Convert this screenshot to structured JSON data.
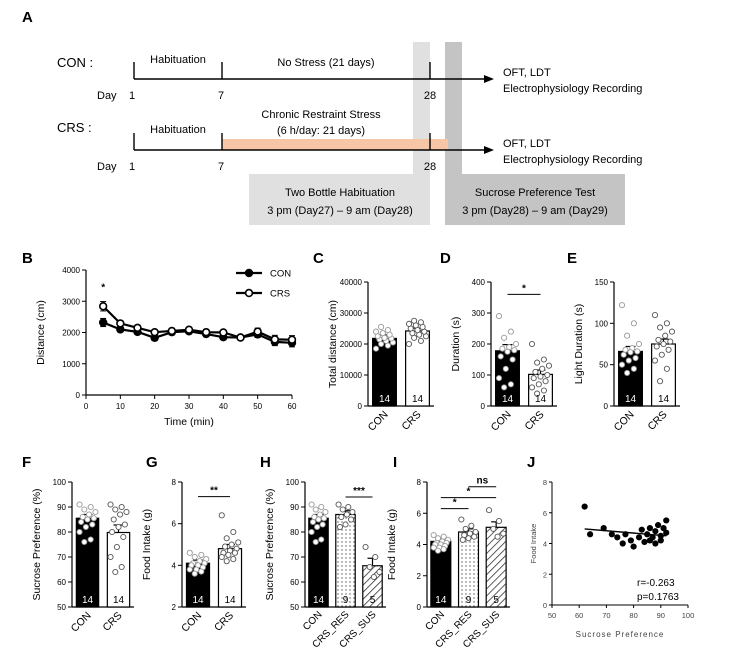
{
  "panel_a": {
    "label": "A",
    "con_label": "CON :",
    "crs_label": "CRS :",
    "day_label": "Day",
    "d1": "1",
    "d7": "7",
    "d28": "28",
    "habituation": "Habituation",
    "no_stress": "No Stress (21 days)",
    "crs_line1": "Chronic Restraint Stress",
    "crs_line2": "(6 h/day: 21 days)",
    "out1": "OFT, LDT",
    "out2": "Electrophysiology Recording",
    "tbh_line1": "Two Bottle Habituation",
    "tbh_line2": "3 pm (Day27) – 9 am (Day28)",
    "spt_line1": "Sucrose Preference Test",
    "spt_line2": "3 pm (Day28) – 9 am (Day29)",
    "colors": {
      "stress": "#f6c6a6",
      "gray_light": "#e0e0e0",
      "gray_dark": "#c4c4c4"
    }
  },
  "chart_data": [
    {
      "id": "B",
      "type": "line",
      "ylabel": "Distance (cm)",
      "xlabel": "Time (min)",
      "ylim": [
        0,
        4000
      ],
      "yticks": [
        0,
        1000,
        2000,
        3000,
        4000
      ],
      "xlim": [
        0,
        60
      ],
      "xticks": [
        0,
        10,
        20,
        30,
        40,
        50,
        60
      ],
      "x": [
        5,
        10,
        15,
        20,
        25,
        30,
        35,
        40,
        45,
        50,
        55,
        60
      ],
      "series": [
        {
          "name": "CON",
          "marker": "filled",
          "values": [
            2320,
            2100,
            2020,
            1830,
            2010,
            2040,
            1950,
            1850,
            1840,
            1940,
            1700,
            1670
          ],
          "errors": [
            130,
            80,
            80,
            90,
            90,
            80,
            80,
            80,
            80,
            100,
            120,
            130
          ]
        },
        {
          "name": "CRS",
          "marker": "open",
          "values": [
            2840,
            2290,
            2150,
            2010,
            2050,
            2090,
            2010,
            2000,
            1840,
            2030,
            1780,
            1770
          ],
          "errors": [
            150,
            90,
            80,
            80,
            80,
            80,
            90,
            80,
            80,
            110,
            130,
            130
          ]
        }
      ],
      "annotations": [
        "*"
      ]
    },
    {
      "id": "C",
      "type": "bar",
      "ylabel": "Total distance (cm)",
      "ylim": [
        0,
        40000
      ],
      "yticks": [
        0,
        10000,
        20000,
        30000,
        40000
      ],
      "categories": [
        "CON",
        "CRS"
      ],
      "values": [
        21800,
        24200
      ],
      "errors": [
        1100,
        900
      ],
      "n": [
        "14",
        "14"
      ],
      "points": [
        [
          18500,
          19500,
          20000,
          20500,
          21000,
          21500,
          21800,
          22000,
          22500,
          23000,
          23500,
          24000,
          24500,
          25500
        ],
        [
          20000,
          21000,
          22000,
          22500,
          23000,
          23500,
          24000,
          24500,
          25000,
          25500,
          26000,
          26500,
          27000,
          27500
        ]
      ]
    },
    {
      "id": "D",
      "type": "bar",
      "ylabel": "Duration (s)",
      "ylim": [
        0,
        400
      ],
      "yticks": [
        0,
        100,
        200,
        300,
        400
      ],
      "categories": [
        "CON",
        "CRS"
      ],
      "values": [
        178,
        102
      ],
      "errors": [
        20,
        14
      ],
      "n": [
        "14",
        "14"
      ],
      "points": [
        [
          290,
          240,
          220,
          200,
          190,
          185,
          180,
          175,
          160,
          150,
          120,
          90,
          70,
          60
        ],
        [
          200,
          150,
          140,
          130,
          120,
          110,
          100,
          95,
          90,
          80,
          70,
          60,
          50,
          40
        ]
      ],
      "annotations": [
        "*"
      ]
    },
    {
      "id": "E",
      "type": "bar",
      "ylabel": "Light Duration (s)",
      "ylim": [
        0,
        150
      ],
      "yticks": [
        0,
        50,
        100,
        150
      ],
      "categories": [
        "CON",
        "CRS"
      ],
      "values": [
        66,
        75
      ],
      "errors": [
        6,
        6
      ],
      "n": [
        "14",
        "14"
      ],
      "points": [
        [
          122,
          100,
          85,
          75,
          70,
          68,
          66,
          65,
          62,
          58,
          55,
          50,
          45,
          40
        ],
        [
          110,
          100,
          95,
          90,
          85,
          80,
          78,
          75,
          72,
          68,
          62,
          55,
          45,
          30
        ]
      ]
    },
    {
      "id": "F",
      "type": "bar",
      "ylabel": "Sucrose Preference (%)",
      "ylim": [
        50,
        100
      ],
      "yticks": [
        50,
        60,
        70,
        80,
        90,
        100
      ],
      "categories": [
        "CON",
        "CRS"
      ],
      "values": [
        85.5,
        79.8
      ],
      "errors": [
        1.5,
        3
      ],
      "n": [
        "14",
        "14"
      ],
      "points": [
        [
          91,
          90,
          89,
          88,
          87,
          86,
          85.5,
          85,
          84,
          83,
          82,
          80,
          77,
          76
        ],
        [
          91,
          90,
          89,
          88,
          87,
          85,
          83,
          82,
          80,
          78,
          74,
          70,
          66,
          64
        ]
      ]
    },
    {
      "id": "G",
      "type": "bar",
      "ylabel": "Food Intake (g)",
      "ylim": [
        2,
        8
      ],
      "yticks": [
        2,
        4,
        6,
        8
      ],
      "categories": [
        "CON",
        "CRS"
      ],
      "values": [
        4.1,
        4.8
      ],
      "errors": [
        0.15,
        0.2
      ],
      "n": [
        "14",
        "14"
      ],
      "points": [
        [
          4.6,
          4.5,
          4.4,
          4.3,
          4.2,
          4.1,
          4.1,
          4.0,
          4.0,
          3.9,
          3.8,
          3.8,
          3.7,
          3.6
        ],
        [
          6.4,
          5.6,
          5.3,
          5.1,
          5.0,
          4.9,
          4.8,
          4.7,
          4.6,
          4.6,
          4.5,
          4.4,
          4.3,
          4.2
        ]
      ],
      "annotations": [
        "**"
      ]
    },
    {
      "id": "H",
      "type": "bar",
      "ylabel": "Sucrose Preference (%)",
      "ylim": [
        50,
        100
      ],
      "yticks": [
        50,
        60,
        70,
        80,
        90,
        100
      ],
      "categories": [
        "CON",
        "CRS_RES",
        "CRS_SUS"
      ],
      "values": [
        85.5,
        87,
        66.5
      ],
      "errors": [
        1.5,
        1.5,
        3
      ],
      "n": [
        "14",
        "9",
        "5"
      ],
      "points": [
        [
          91,
          90,
          89,
          88,
          87,
          86,
          85.5,
          85,
          84,
          83,
          82,
          80,
          77,
          76
        ],
        [
          91,
          90,
          89,
          88,
          87,
          86,
          85,
          83,
          82
        ],
        [
          74,
          70,
          66,
          64,
          62
        ]
      ],
      "annotations": [
        "***"
      ]
    },
    {
      "id": "I",
      "type": "bar",
      "ylabel": "Food Intake (g)",
      "ylim": [
        0,
        8
      ],
      "yticks": [
        0,
        2,
        4,
        6,
        8
      ],
      "categories": [
        "CON",
        "CRS_RES",
        "CRS_SUS"
      ],
      "values": [
        4.2,
        4.8,
        5.1
      ],
      "errors": [
        0.15,
        0.2,
        0.35
      ],
      "n": [
        "14",
        "9",
        "5"
      ],
      "points": [
        [
          4.6,
          4.5,
          4.4,
          4.3,
          4.2,
          4.1,
          4.1,
          4.0,
          4.0,
          3.9,
          3.8,
          3.8,
          3.7,
          3.6
        ],
        [
          5.6,
          5.2,
          5.0,
          4.8,
          4.7,
          4.6,
          4.5,
          4.4,
          4.3
        ],
        [
          6.2,
          5.5,
          5.0,
          4.7,
          4.5
        ]
      ],
      "annotations": [
        "*",
        "*",
        "ns"
      ]
    },
    {
      "id": "J",
      "type": "scatter",
      "xlabel": "Sucrose Preference",
      "ylabel": "Food Intake",
      "xlim": [
        50,
        100
      ],
      "xticks": [
        50,
        60,
        70,
        80,
        90,
        100
      ],
      "ylim": [
        0,
        8
      ],
      "yticks": [
        0,
        2,
        4,
        6,
        8
      ],
      "x": [
        62,
        64,
        69,
        72,
        74,
        76,
        77,
        79,
        80,
        82,
        83,
        84,
        85,
        86,
        86,
        87,
        88,
        88,
        89,
        90,
        90,
        91,
        92,
        92
      ],
      "y": [
        6.4,
        4.6,
        5.0,
        4.6,
        4.4,
        4.0,
        4.6,
        4.2,
        3.8,
        4.4,
        4.9,
        4.1,
        4.6,
        4.2,
        5.0,
        4.4,
        4.8,
        4.0,
        5.2,
        4.5,
        4.2,
        5.0,
        4.7,
        5.5
      ],
      "fit": {
        "x": [
          62,
          92
        ],
        "y": [
          4.95,
          4.5
        ]
      },
      "stats": [
        "r=-0.263",
        "p=0.1763"
      ]
    }
  ]
}
